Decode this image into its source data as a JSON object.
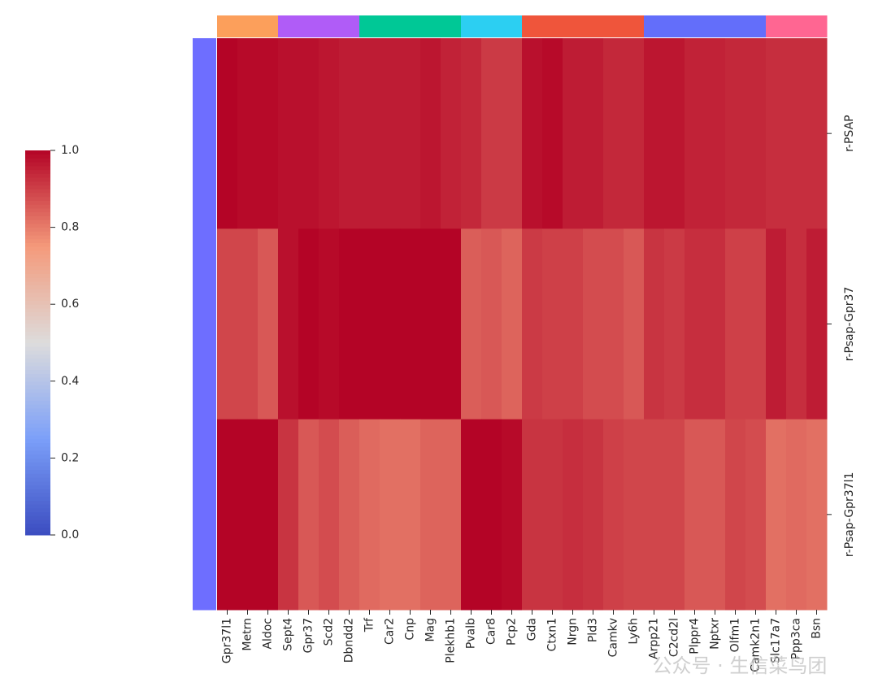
{
  "chart_data": {
    "type": "heatmap",
    "columns": [
      "Gpr37l1",
      "Metrn",
      "Aldoc",
      "Sept4",
      "Gpr37",
      "Scd2",
      "Dbndd2",
      "Trf",
      "Car2",
      "Cnp",
      "Mag",
      "Plekhb1",
      "Pvalb",
      "Car8",
      "Pcp2",
      "Gda",
      "Ctxn1",
      "Nrgn",
      "Pld3",
      "Camkv",
      "Ly6h",
      "Arpp21",
      "C2cd2l",
      "Plppr4",
      "Nptxr",
      "Olfm1",
      "Camk2n1",
      "Slc17a7",
      "Ppp3ca",
      "Bsn"
    ],
    "rows": [
      "r-PSAP",
      "r-Psap-Gpr37",
      "r-Psap-Gpr37l1"
    ],
    "values": [
      [
        1.0,
        0.99,
        0.99,
        0.98,
        0.98,
        0.97,
        0.96,
        0.96,
        0.96,
        0.96,
        0.97,
        0.95,
        0.94,
        0.91,
        0.91,
        0.98,
        0.99,
        0.96,
        0.96,
        0.94,
        0.94,
        0.97,
        0.97,
        0.95,
        0.95,
        0.94,
        0.94,
        0.93,
        0.93,
        0.93
      ],
      [
        0.89,
        0.89,
        0.86,
        0.98,
        1.0,
        0.99,
        1.0,
        1.0,
        1.0,
        1.0,
        1.0,
        1.0,
        0.85,
        0.86,
        0.84,
        0.91,
        0.9,
        0.9,
        0.88,
        0.88,
        0.86,
        0.92,
        0.91,
        0.93,
        0.93,
        0.9,
        0.9,
        0.96,
        0.93,
        0.96
      ],
      [
        1.0,
        1.0,
        1.0,
        0.92,
        0.86,
        0.88,
        0.85,
        0.83,
        0.82,
        0.82,
        0.84,
        0.84,
        1.0,
        1.0,
        0.99,
        0.92,
        0.92,
        0.93,
        0.92,
        0.9,
        0.89,
        0.89,
        0.89,
        0.86,
        0.86,
        0.89,
        0.88,
        0.82,
        0.83,
        0.82
      ]
    ],
    "col_colors": [
      "#fc9f5b",
      "#fc9f5b",
      "#fc9f5b",
      "#b05cf7",
      "#b05cf7",
      "#b05cf7",
      "#b05cf7",
      "#00c896",
      "#00c896",
      "#00c896",
      "#00c896",
      "#00c896",
      "#2ccff2",
      "#2ccff2",
      "#2ccff2",
      "#ef553b",
      "#ef553b",
      "#ef553b",
      "#ef553b",
      "#ef553b",
      "#ef553b",
      "#636efa",
      "#636efa",
      "#636efa",
      "#636efa",
      "#636efa",
      "#636efa",
      "#ff6692",
      "#ff6692",
      "#ff6692"
    ],
    "row_colors": [
      "#6e6eff",
      "#6e6eff",
      "#6e6eff"
    ],
    "cmap": "coolwarm",
    "clim": [
      0,
      1
    ],
    "cticks": [
      {
        "value": 0,
        "label": "0.0"
      },
      0.2,
      0.4,
      0.6,
      0.8,
      {
        "value": 1,
        "label": "1.0"
      }
    ],
    "watermark": "公众号 · 生信菜鸟团"
  }
}
